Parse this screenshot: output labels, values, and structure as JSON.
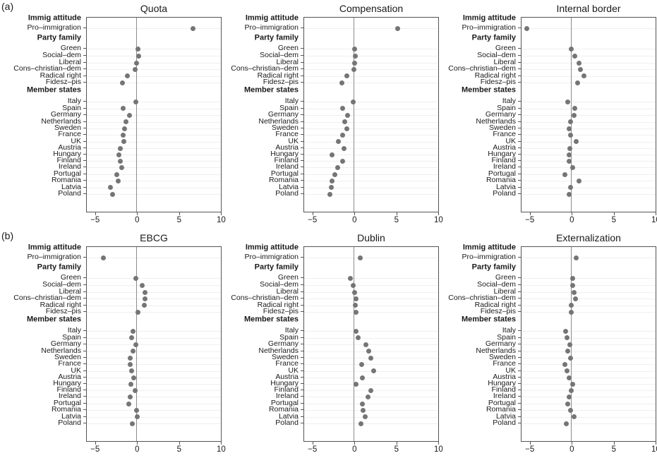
{
  "figure": {
    "panel_letters": [
      "(a)",
      "(b)"
    ]
  },
  "chart_data": {
    "type": "scatter",
    "subtype": "dot-plot-coefficients",
    "xlim": [
      -5.9,
      10.05
    ],
    "xticks": [
      -5,
      0,
      5,
      10
    ],
    "grid": "light horizontal gridline per category row",
    "legend_position": "none",
    "colors": {
      "point": "#757575",
      "zero_line": "#8c8c8c",
      "gridline": "#efefef",
      "border": "#555555",
      "text": "#1a1a1a"
    },
    "rows": [
      {
        "label": "Immig attitude",
        "header": true
      },
      {
        "label": "Pro–immigration",
        "header": false
      },
      {
        "label": "Party family",
        "header": true
      },
      {
        "label": "Green",
        "header": false
      },
      {
        "label": "Social–dem",
        "header": false
      },
      {
        "label": "Liberal",
        "header": false
      },
      {
        "label": "Cons–christian–dem",
        "header": false
      },
      {
        "label": "Radical right",
        "header": false
      },
      {
        "label": "Fidesz–pis",
        "header": false
      },
      {
        "label": "Member states",
        "header": true
      },
      {
        "label": "Italy",
        "header": false
      },
      {
        "label": "Spain",
        "header": false
      },
      {
        "label": "Germany",
        "header": false
      },
      {
        "label": "Netherlands",
        "header": false
      },
      {
        "label": "Sweden",
        "header": false
      },
      {
        "label": "France",
        "header": false
      },
      {
        "label": "UK",
        "header": false
      },
      {
        "label": "Austria",
        "header": false
      },
      {
        "label": "Hungary",
        "header": false
      },
      {
        "label": "Finland",
        "header": false
      },
      {
        "label": "Ireland",
        "header": false
      },
      {
        "label": "Portugal",
        "header": false
      },
      {
        "label": "Romania",
        "header": false
      },
      {
        "label": "Latvia",
        "header": false
      },
      {
        "label": "Poland",
        "header": false
      }
    ],
    "panels": [
      {
        "group": "a",
        "title": "Quota",
        "values": [
          6.7,
          0.15,
          0.25,
          0.05,
          -0.15,
          -1.05,
          -1.7,
          -0.05,
          -1.55,
          -0.85,
          -1.25,
          -1.4,
          -1.6,
          -1.5,
          -1.9,
          -2.05,
          -1.95,
          -1.75,
          -2.35,
          -2.2,
          -3.1,
          -2.8
        ]
      },
      {
        "group": "a",
        "title": "Compensation",
        "values": [
          5.25,
          0.1,
          0.2,
          0.1,
          0.0,
          -0.85,
          -1.4,
          -0.1,
          -1.35,
          -0.7,
          -1.05,
          -0.8,
          -1.35,
          -1.8,
          -1.15,
          -2.55,
          -1.35,
          -1.95,
          -2.25,
          -2.6,
          -2.7,
          -2.8
        ]
      },
      {
        "group": "a",
        "title": "Internal border",
        "values": [
          -5.3,
          0.0,
          0.45,
          0.95,
          1.15,
          1.5,
          0.8,
          -0.4,
          0.4,
          0.35,
          -0.05,
          -0.25,
          -0.05,
          0.6,
          -0.15,
          -0.2,
          -0.2,
          0.2,
          -0.7,
          0.95,
          -0.05,
          -0.2
        ]
      },
      {
        "group": "b",
        "title": "EBCG",
        "values": [
          -3.9,
          -0.05,
          0.7,
          1.0,
          1.05,
          0.95,
          0.2,
          -0.4,
          -0.55,
          -0.1,
          -0.4,
          -0.75,
          -0.75,
          -0.6,
          -0.3,
          -0.65,
          -0.15,
          -0.7,
          -0.9,
          0.0,
          0.1,
          -0.5
        ]
      },
      {
        "group": "b",
        "title": "Dublin",
        "values": [
          0.75,
          -0.4,
          -0.05,
          0.1,
          0.25,
          0.15,
          0.25,
          0.3,
          0.55,
          1.45,
          1.8,
          2.0,
          0.95,
          2.35,
          1.0,
          0.3,
          2.0,
          1.7,
          1.0,
          1.15,
          1.4,
          0.85
        ]
      },
      {
        "group": "b",
        "title": "Externalization",
        "values": [
          0.6,
          0.15,
          0.15,
          0.35,
          0.5,
          0.0,
          0.0,
          -0.65,
          -0.45,
          -0.15,
          -0.4,
          -0.05,
          -0.75,
          -0.45,
          -0.2,
          0.2,
          0.05,
          -0.25,
          -0.4,
          -0.1,
          0.35,
          -0.55
        ]
      }
    ]
  }
}
